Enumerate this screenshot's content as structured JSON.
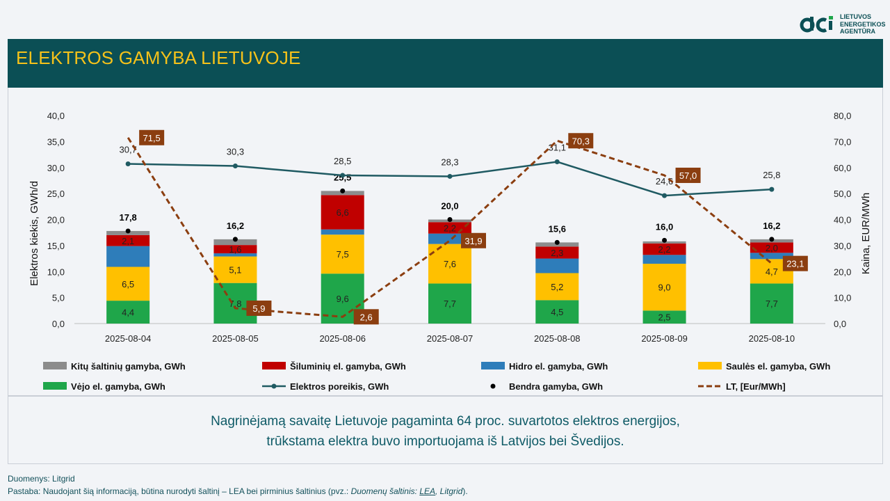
{
  "header": {
    "title": "ELEKTROS GAMYBA LIETUVOJE",
    "logo_lines": [
      "LIETUVOS",
      "ENERGETIKOS",
      "AGENTŪRA"
    ]
  },
  "colors": {
    "banner": "#0b4f55",
    "title": "#f6c21a",
    "other": "#8c8c8c",
    "heat": "#c00000",
    "hydro": "#2e7dba",
    "solar": "#ffc000",
    "wind": "#1fa64a",
    "demand": "#1f5a62",
    "price": "#8b3e10"
  },
  "chart_data": {
    "type": "bar",
    "stacked": true,
    "categories": [
      "2025-08-04",
      "2025-08-05",
      "2025-08-06",
      "2025-08-07",
      "2025-08-08",
      "2025-08-09",
      "2025-08-10"
    ],
    "ylabel": "Elektros kiekis, GWh/d",
    "y2label": "Kaina, EUR/MWh",
    "ylim": [
      0,
      40
    ],
    "y2lim": [
      0,
      80
    ],
    "yticks": [
      "0,0",
      "5,0",
      "10,0",
      "15,0",
      "20,0",
      "25,0",
      "30,0",
      "35,0",
      "40,0"
    ],
    "y2ticks": [
      "0,0",
      "10,0",
      "20,0",
      "30,0",
      "40,0",
      "50,0",
      "60,0",
      "70,0",
      "80,0"
    ],
    "series": [
      {
        "name": "Vėjo el. gamyba, GWh",
        "key": "wind",
        "values": [
          4.4,
          7.8,
          9.6,
          7.7,
          4.5,
          2.5,
          7.7
        ],
        "labels": [
          "4,4",
          "7,8",
          "9,6",
          "7,7",
          "4,5",
          "2,5",
          "7,7"
        ]
      },
      {
        "name": "Saulės el. gamyba, GWh",
        "key": "solar",
        "values": [
          6.5,
          5.1,
          7.5,
          7.6,
          5.2,
          9.0,
          4.7
        ],
        "labels": [
          "6,5",
          "5,1",
          "7,5",
          "7,6",
          "5,2",
          "9,0",
          "4,7"
        ]
      },
      {
        "name": "Hidro el. gamyba, GWh",
        "key": "hydro",
        "values": [
          4.0,
          0.6,
          1.0,
          2.0,
          2.8,
          1.7,
          1.2
        ],
        "labels": []
      },
      {
        "name": "Šiluminių el. gamyba, GWh",
        "key": "heat",
        "values": [
          2.1,
          1.6,
          6.6,
          2.2,
          2.3,
          2.2,
          2.0
        ],
        "labels": [
          "2,1",
          "1,6",
          "6,6",
          "2,2",
          "2,3",
          "2,2",
          "2,0"
        ]
      },
      {
        "name": "Kitų šaltinių gamyba,  GWh",
        "key": "other",
        "values": [
          0.8,
          1.1,
          0.8,
          0.5,
          0.8,
          0.4,
          0.6
        ],
        "labels": []
      }
    ],
    "total": {
      "name": "Bendra gamyba, GWh",
      "values": [
        17.8,
        16.2,
        25.5,
        20.0,
        15.6,
        16.0,
        16.2
      ],
      "labels": [
        "17,8",
        "16,2",
        "25,5",
        "20,0",
        "15,6",
        "16,0",
        "16,2"
      ]
    },
    "demand": {
      "name": "Elektros poreikis, GWh",
      "values": [
        30.7,
        30.3,
        28.5,
        28.3,
        31.1,
        24.6,
        25.8
      ],
      "labels": [
        "30,7",
        "30,3",
        "28,5",
        "28,3",
        "31,1",
        "24,6",
        "25,8"
      ]
    },
    "price": {
      "name": "LT, [Eur/MWh]",
      "values": [
        71.5,
        5.9,
        2.6,
        31.9,
        70.3,
        57.0,
        23.1
      ],
      "labels": [
        "71,5",
        "5,9",
        "2,6",
        "31,9",
        "70,3",
        "57,0",
        "23,1"
      ]
    },
    "legend": [
      {
        "key": "other",
        "kind": "box",
        "label": "Kitų šaltinių gamyba,  GWh"
      },
      {
        "key": "heat",
        "kind": "box",
        "label": "Šiluminių el. gamyba, GWh"
      },
      {
        "key": "hydro",
        "kind": "box",
        "label": "Hidro el. gamyba, GWh"
      },
      {
        "key": "solar",
        "kind": "box",
        "label": "Saulės el. gamyba, GWh"
      },
      {
        "key": "wind",
        "kind": "box",
        "label": "Vėjo el. gamyba, GWh"
      },
      {
        "key": "demand",
        "kind": "line-dot",
        "label": "Elektros poreikis, GWh"
      },
      {
        "key": "total",
        "kind": "dot",
        "label": "Bendra gamyba, GWh"
      },
      {
        "key": "price",
        "kind": "dash",
        "label": "LT, [Eur/MWh]"
      }
    ],
    "legend_position": "bottom",
    "grid": false
  },
  "summary": {
    "line1": "Nagrinėjamą savaitę Lietuvoje pagaminta 64 proc. suvartotos elektros energijos,",
    "line2": "trūkstama elektra buvo importuojama iš Latvijos bei Švedijos."
  },
  "footer": {
    "source": "Duomenys: Litgrid",
    "note_prefix": "Pastaba: Naudojant šią informaciją, būtina nurodyti šaltinį – LEA bei pirminius šaltinius (pvz.: ",
    "note_italic": "Duomenų šaltinis: ",
    "note_link": "LEA",
    "note_italic2": ", Litgrid",
    "note_suffix": ")."
  }
}
